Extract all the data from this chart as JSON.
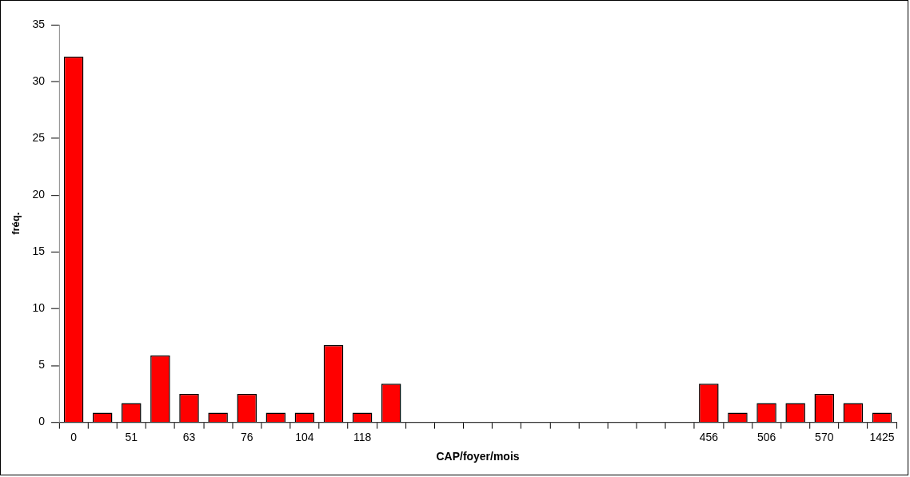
{
  "chart_data": {
    "type": "bar",
    "xlabel": "CAP/foyer/mois",
    "ylabel": "fréq.",
    "categories": [
      "0",
      null,
      "51",
      null,
      "63",
      null,
      "76",
      null,
      "104",
      null,
      "118",
      null,
      null,
      null,
      null,
      null,
      null,
      null,
      null,
      null,
      null,
      null,
      "456",
      null,
      "506",
      null,
      "570",
      null,
      "1425"
    ],
    "values": [
      32.2,
      0.85,
      1.7,
      5.9,
      2.5,
      0.85,
      2.5,
      0.85,
      0.85,
      6.8,
      0.85,
      3.4,
      null,
      null,
      null,
      null,
      null,
      null,
      null,
      null,
      null,
      null,
      3.4,
      0.85,
      1.7,
      1.7,
      2.5,
      1.7,
      0.85
    ],
    "color": "#ff0000",
    "ylim": [
      0,
      35
    ],
    "yticks": [
      0,
      5,
      10,
      15,
      20,
      25,
      30,
      35
    ],
    "grid": false,
    "legend": false
  }
}
